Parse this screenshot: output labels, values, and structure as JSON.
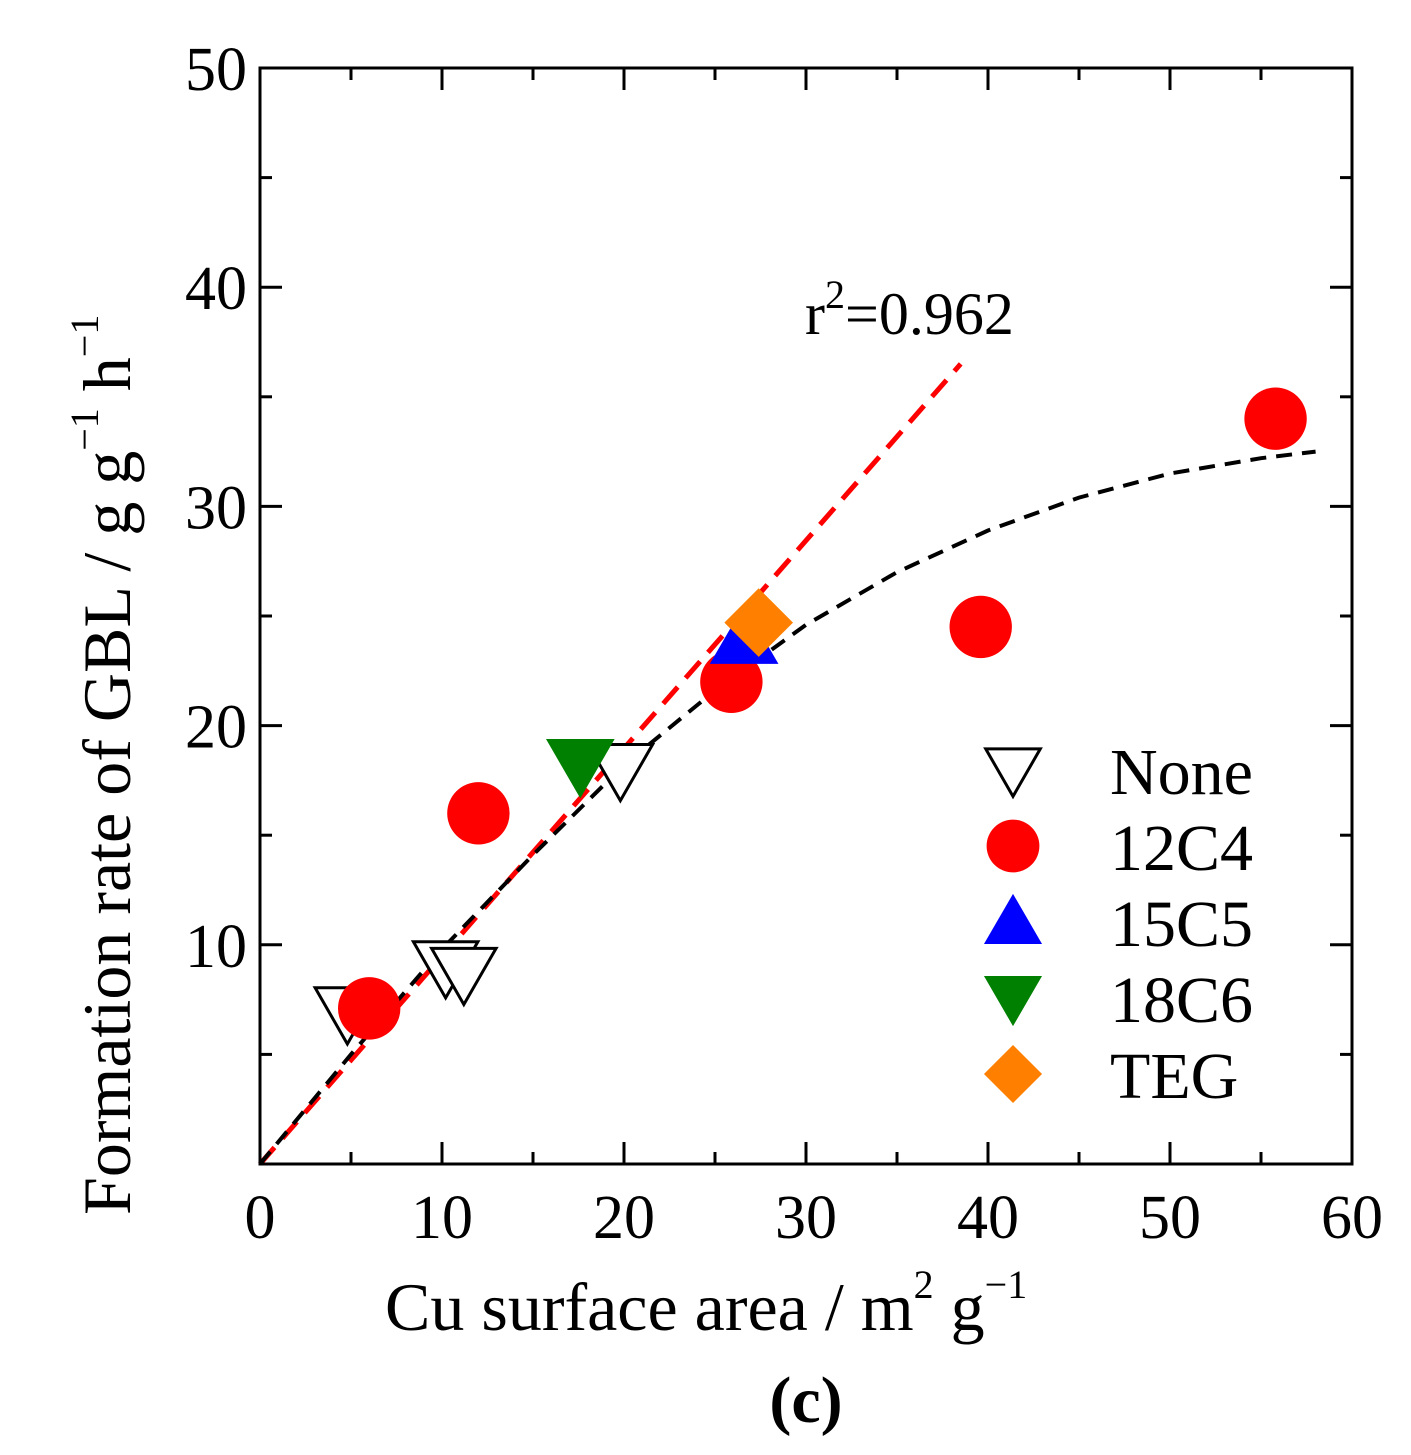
{
  "chart_data": {
    "type": "scatter",
    "panel_label": "(c)",
    "xlabel": {
      "text": "Cu surface area / m",
      "sup1": "2",
      "mid": " g",
      "sup2": "−1"
    },
    "ylabel": {
      "text": "Formation rate of GBL / g g",
      "sup1": "−1",
      "mid": " h",
      "sup2": "−1"
    },
    "xlim": [
      0,
      60
    ],
    "ylim": [
      0,
      50
    ],
    "x_ticks": [
      "0",
      "10",
      "20",
      "30",
      "40",
      "50",
      "60"
    ],
    "y_ticks": [
      "10",
      "20",
      "30",
      "40",
      "50"
    ],
    "grid": false,
    "legend_position": "bottom-right",
    "annotation": {
      "prefix": "r",
      "sup": "2",
      "suffix": "=0.962"
    },
    "series": [
      {
        "name": "None",
        "marker": "triangle-down-open",
        "color": "#000000",
        "points": [
          [
            4.8,
            6.9
          ],
          [
            10.2,
            9.0
          ],
          [
            11.2,
            8.7
          ],
          [
            19.8,
            18.0
          ]
        ]
      },
      {
        "name": "12C4",
        "marker": "circle",
        "color": "#ff0000",
        "points": [
          [
            6.0,
            7.1
          ],
          [
            12.0,
            16.0
          ],
          [
            25.9,
            22.0
          ],
          [
            39.6,
            24.5
          ],
          [
            55.8,
            34.0
          ]
        ]
      },
      {
        "name": "15C5",
        "marker": "triangle-up",
        "color": "#0000ff",
        "points": [
          [
            26.6,
            24.0
          ]
        ]
      },
      {
        "name": "18C6",
        "marker": "triangle-down",
        "color": "#008000",
        "points": [
          [
            17.6,
            18.2
          ]
        ]
      },
      {
        "name": "TEG",
        "marker": "diamond",
        "color": "#ff8000",
        "points": [
          [
            27.4,
            24.7
          ]
        ]
      }
    ],
    "fits": [
      {
        "color": "#ff0000",
        "style": "dashed",
        "kind": "linear",
        "points": [
          [
            0,
            0
          ],
          [
            38.5,
            36.5
          ]
        ]
      },
      {
        "color": "#000000",
        "style": "dashed",
        "kind": "curve",
        "points": [
          [
            0,
            0
          ],
          [
            5,
            5.0
          ],
          [
            10,
            9.8
          ],
          [
            15,
            14.1
          ],
          [
            20,
            18.2
          ],
          [
            25,
            21.6
          ],
          [
            30,
            24.6
          ],
          [
            35,
            27.0
          ],
          [
            40,
            28.9
          ],
          [
            45,
            30.4
          ],
          [
            50,
            31.5
          ],
          [
            55,
            32.2
          ],
          [
            58,
            32.5
          ]
        ]
      }
    ]
  }
}
